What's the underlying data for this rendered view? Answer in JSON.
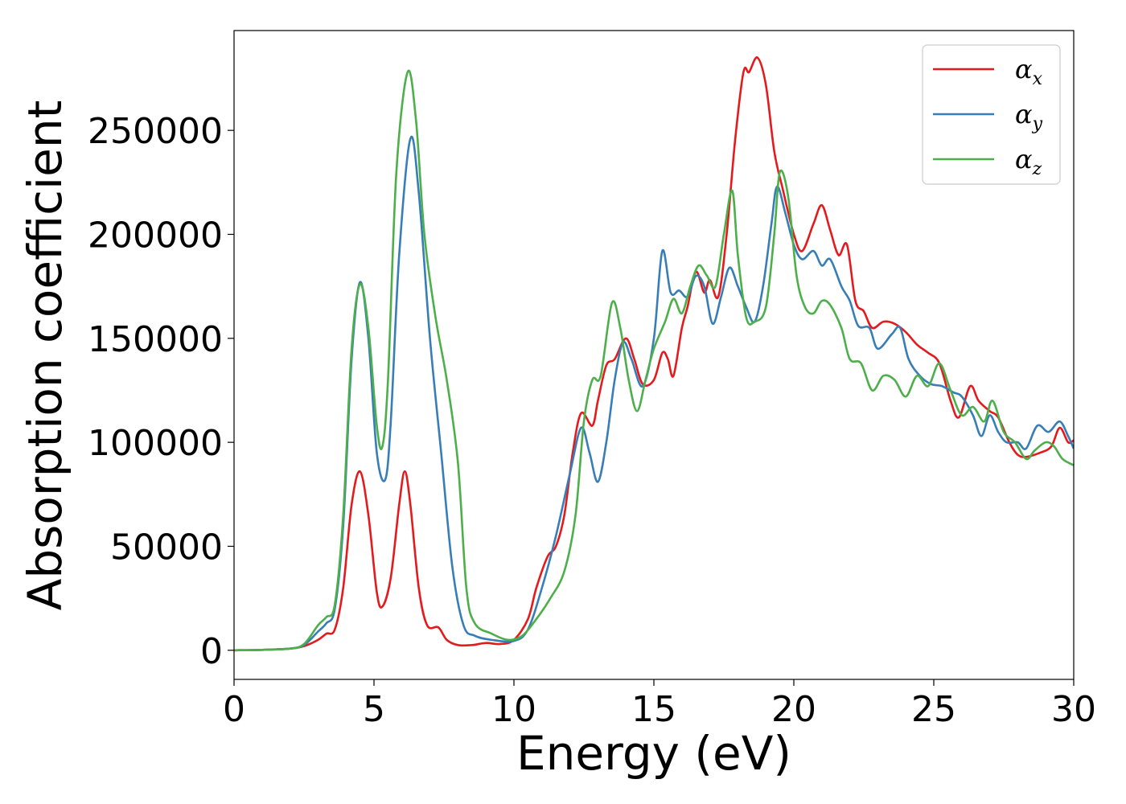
{
  "chart_data": {
    "type": "line",
    "title": "",
    "xlabel": "Energy (eV)",
    "ylabel": "Absorption coefficient",
    "xlim": [
      0,
      30
    ],
    "ylim": [
      -14000,
      298000
    ],
    "xticks": [
      0,
      5,
      10,
      15,
      20,
      25,
      30
    ],
    "yticks": [
      0,
      50000,
      100000,
      150000,
      200000,
      250000
    ],
    "grid": false,
    "legend_position": "top-right",
    "series": [
      {
        "name": "α",
        "subscript": "x",
        "color": "#e41a1c",
        "points": [
          [
            0,
            0
          ],
          [
            1,
            200
          ],
          [
            2,
            800
          ],
          [
            2.5,
            2000
          ],
          [
            3,
            5000
          ],
          [
            3.3,
            8000
          ],
          [
            3.6,
            10000
          ],
          [
            3.9,
            30000
          ],
          [
            4.2,
            70000
          ],
          [
            4.5,
            86000
          ],
          [
            4.8,
            65000
          ],
          [
            5.1,
            28000
          ],
          [
            5.3,
            21000
          ],
          [
            5.6,
            35000
          ],
          [
            5.9,
            70000
          ],
          [
            6.1,
            86000
          ],
          [
            6.3,
            70000
          ],
          [
            6.6,
            30000
          ],
          [
            6.9,
            12000
          ],
          [
            7.3,
            11000
          ],
          [
            7.6,
            5000
          ],
          [
            8,
            2500
          ],
          [
            8.5,
            2500
          ],
          [
            9,
            3500
          ],
          [
            9.5,
            3000
          ],
          [
            10,
            5000
          ],
          [
            10.5,
            15000
          ],
          [
            10.8,
            30000
          ],
          [
            11.2,
            45000
          ],
          [
            11.5,
            50000
          ],
          [
            11.8,
            65000
          ],
          [
            12.1,
            95000
          ],
          [
            12.4,
            114000
          ],
          [
            12.8,
            108000
          ],
          [
            13,
            120000
          ],
          [
            13.3,
            137000
          ],
          [
            13.6,
            140000
          ],
          [
            14,
            150000
          ],
          [
            14.3,
            140000
          ],
          [
            14.6,
            128000
          ],
          [
            15,
            130000
          ],
          [
            15.3,
            143000
          ],
          [
            15.5,
            140000
          ],
          [
            15.7,
            132000
          ],
          [
            16,
            155000
          ],
          [
            16.2,
            165000
          ],
          [
            16.5,
            182000
          ],
          [
            16.8,
            172000
          ],
          [
            17,
            178000
          ],
          [
            17.3,
            170000
          ],
          [
            17.6,
            200000
          ],
          [
            17.9,
            245000
          ],
          [
            18.2,
            278000
          ],
          [
            18.4,
            278000
          ],
          [
            18.7,
            285000
          ],
          [
            19,
            272000
          ],
          [
            19.3,
            240000
          ],
          [
            19.6,
            222000
          ],
          [
            20,
            200000
          ],
          [
            20.3,
            192000
          ],
          [
            20.7,
            205000
          ],
          [
            21,
            214000
          ],
          [
            21.3,
            202000
          ],
          [
            21.6,
            190000
          ],
          [
            21.9,
            195000
          ],
          [
            22.2,
            168000
          ],
          [
            22.5,
            163000
          ],
          [
            22.8,
            155000
          ],
          [
            23.2,
            158000
          ],
          [
            23.6,
            157000
          ],
          [
            24,
            153000
          ],
          [
            24.4,
            147000
          ],
          [
            24.8,
            143000
          ],
          [
            25.2,
            138000
          ],
          [
            25.6,
            120000
          ],
          [
            25.9,
            112000
          ],
          [
            26.3,
            127000
          ],
          [
            26.6,
            120000
          ],
          [
            27,
            115000
          ],
          [
            27.3,
            112000
          ],
          [
            27.7,
            100000
          ],
          [
            28,
            94000
          ],
          [
            28.3,
            93000
          ],
          [
            28.8,
            95000
          ],
          [
            29.2,
            98000
          ],
          [
            29.5,
            107000
          ],
          [
            29.8,
            100000
          ],
          [
            30,
            101000
          ]
        ]
      },
      {
        "name": "α",
        "subscript": "y",
        "color": "#377eb8",
        "points": [
          [
            0,
            0
          ],
          [
            1,
            200
          ],
          [
            2,
            800
          ],
          [
            2.5,
            2500
          ],
          [
            3,
            9000
          ],
          [
            3.3,
            13000
          ],
          [
            3.6,
            20000
          ],
          [
            3.9,
            60000
          ],
          [
            4.2,
            140000
          ],
          [
            4.5,
            177000
          ],
          [
            4.8,
            150000
          ],
          [
            5.1,
            95000
          ],
          [
            5.4,
            82000
          ],
          [
            5.6,
            110000
          ],
          [
            5.9,
            190000
          ],
          [
            6.3,
            246000
          ],
          [
            6.6,
            220000
          ],
          [
            7,
            150000
          ],
          [
            7.4,
            95000
          ],
          [
            7.8,
            40000
          ],
          [
            8.2,
            12000
          ],
          [
            8.6,
            7000
          ],
          [
            9.2,
            5000
          ],
          [
            10,
            4500
          ],
          [
            10.5,
            10000
          ],
          [
            11,
            30000
          ],
          [
            11.5,
            55000
          ],
          [
            12,
            85000
          ],
          [
            12.4,
            107000
          ],
          [
            12.7,
            95000
          ],
          [
            13,
            81000
          ],
          [
            13.3,
            100000
          ],
          [
            13.6,
            130000
          ],
          [
            13.9,
            148000
          ],
          [
            14.2,
            140000
          ],
          [
            14.6,
            127000
          ],
          [
            15,
            150000
          ],
          [
            15.3,
            192000
          ],
          [
            15.6,
            172000
          ],
          [
            15.9,
            173000
          ],
          [
            16.2,
            170000
          ],
          [
            16.5,
            180000
          ],
          [
            16.8,
            175000
          ],
          [
            17.1,
            157000
          ],
          [
            17.4,
            170000
          ],
          [
            17.7,
            184000
          ],
          [
            18,
            175000
          ],
          [
            18.3,
            165000
          ],
          [
            18.6,
            158000
          ],
          [
            18.9,
            175000
          ],
          [
            19.2,
            205000
          ],
          [
            19.4,
            223000
          ],
          [
            19.7,
            210000
          ],
          [
            20,
            195000
          ],
          [
            20.3,
            188000
          ],
          [
            20.7,
            192000
          ],
          [
            21,
            185000
          ],
          [
            21.3,
            188000
          ],
          [
            21.7,
            175000
          ],
          [
            22,
            168000
          ],
          [
            22.3,
            156000
          ],
          [
            22.7,
            155000
          ],
          [
            23,
            145000
          ],
          [
            23.5,
            152000
          ],
          [
            23.8,
            155000
          ],
          [
            24.1,
            140000
          ],
          [
            24.5,
            132000
          ],
          [
            24.9,
            128000
          ],
          [
            25.3,
            127000
          ],
          [
            25.7,
            124000
          ],
          [
            26,
            122000
          ],
          [
            26.4,
            113000
          ],
          [
            26.7,
            103000
          ],
          [
            27,
            113000
          ],
          [
            27.3,
            105000
          ],
          [
            27.6,
            100000
          ],
          [
            28,
            100000
          ],
          [
            28.3,
            97000
          ],
          [
            28.7,
            108000
          ],
          [
            29.1,
            105000
          ],
          [
            29.5,
            110000
          ],
          [
            29.8,
            103000
          ],
          [
            30,
            97000
          ]
        ]
      },
      {
        "name": "α",
        "subscript": "z",
        "color": "#4daf4a",
        "points": [
          [
            0,
            0
          ],
          [
            1,
            200
          ],
          [
            2,
            800
          ],
          [
            2.5,
            3000
          ],
          [
            3,
            12000
          ],
          [
            3.3,
            16000
          ],
          [
            3.6,
            22000
          ],
          [
            3.9,
            65000
          ],
          [
            4.2,
            145000
          ],
          [
            4.5,
            176000
          ],
          [
            4.8,
            155000
          ],
          [
            5.1,
            108000
          ],
          [
            5.3,
            98000
          ],
          [
            5.5,
            130000
          ],
          [
            5.8,
            230000
          ],
          [
            6.2,
            278000
          ],
          [
            6.5,
            255000
          ],
          [
            6.8,
            200000
          ],
          [
            7.2,
            160000
          ],
          [
            7.6,
            130000
          ],
          [
            8,
            90000
          ],
          [
            8.3,
            30000
          ],
          [
            8.6,
            13000
          ],
          [
            9.2,
            8000
          ],
          [
            9.8,
            5000
          ],
          [
            10.3,
            7000
          ],
          [
            10.8,
            15000
          ],
          [
            11.3,
            25000
          ],
          [
            11.8,
            38000
          ],
          [
            12.2,
            65000
          ],
          [
            12.5,
            110000
          ],
          [
            12.8,
            130000
          ],
          [
            13.1,
            132000
          ],
          [
            13.5,
            167000
          ],
          [
            13.8,
            155000
          ],
          [
            14.1,
            130000
          ],
          [
            14.4,
            115000
          ],
          [
            14.7,
            130000
          ],
          [
            15,
            145000
          ],
          [
            15.4,
            158000
          ],
          [
            15.7,
            169000
          ],
          [
            16,
            162000
          ],
          [
            16.3,
            175000
          ],
          [
            16.6,
            185000
          ],
          [
            16.9,
            180000
          ],
          [
            17.2,
            175000
          ],
          [
            17.5,
            200000
          ],
          [
            17.8,
            221000
          ],
          [
            18,
            190000
          ],
          [
            18.3,
            160000
          ],
          [
            18.6,
            158000
          ],
          [
            19,
            165000
          ],
          [
            19.3,
            200000
          ],
          [
            19.5,
            230000
          ],
          [
            19.8,
            218000
          ],
          [
            20.1,
            180000
          ],
          [
            20.4,
            165000
          ],
          [
            20.7,
            162000
          ],
          [
            21,
            168000
          ],
          [
            21.3,
            166000
          ],
          [
            21.7,
            155000
          ],
          [
            22,
            140000
          ],
          [
            22.4,
            138000
          ],
          [
            22.8,
            125000
          ],
          [
            23.2,
            132000
          ],
          [
            23.6,
            130000
          ],
          [
            24,
            122000
          ],
          [
            24.4,
            132000
          ],
          [
            24.8,
            127000
          ],
          [
            25.2,
            138000
          ],
          [
            25.6,
            125000
          ],
          [
            26,
            113000
          ],
          [
            26.4,
            117000
          ],
          [
            26.8,
            110000
          ],
          [
            27.1,
            120000
          ],
          [
            27.5,
            105000
          ],
          [
            27.9,
            100000
          ],
          [
            28.3,
            92000
          ],
          [
            28.6,
            96000
          ],
          [
            29,
            100000
          ],
          [
            29.3,
            98000
          ],
          [
            29.6,
            92000
          ],
          [
            30,
            89000
          ]
        ]
      }
    ]
  }
}
